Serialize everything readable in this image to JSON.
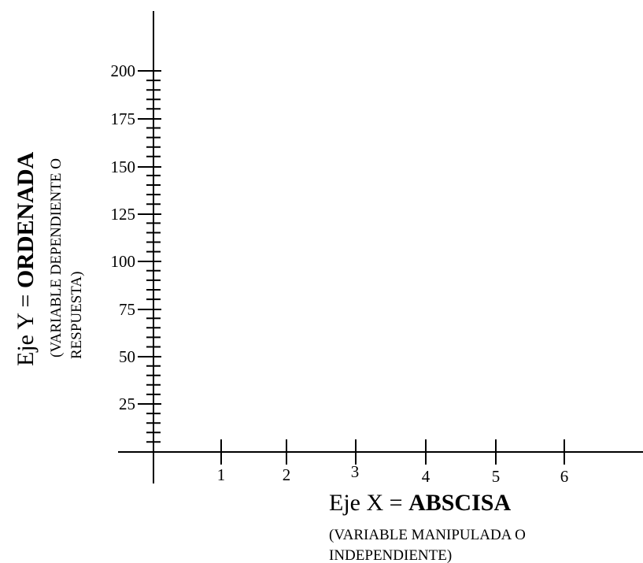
{
  "y_axis": {
    "tick_labels": [
      "200",
      "175",
      "150",
      "125",
      "100",
      "75",
      "50",
      "25"
    ],
    "title_prefix": "Eje Y = ",
    "title_bold": "ORDENADA",
    "subtitle_line1": "(VARIABLE  DEPENDIENTE O",
    "subtitle_line2": "RESPUESTA)"
  },
  "x_axis": {
    "tick_labels": [
      "1",
      "2",
      "3",
      "4",
      "5",
      "6"
    ],
    "title_prefix": "Eje X = ",
    "title_bold": "ABSCISA",
    "subtitle_line1": "(VARIABLE  MANIPULADA O",
    "subtitle_line2": "INDEPENDIENTE)"
  },
  "colors": {
    "ink": "#000000",
    "background": "#ffffff"
  }
}
